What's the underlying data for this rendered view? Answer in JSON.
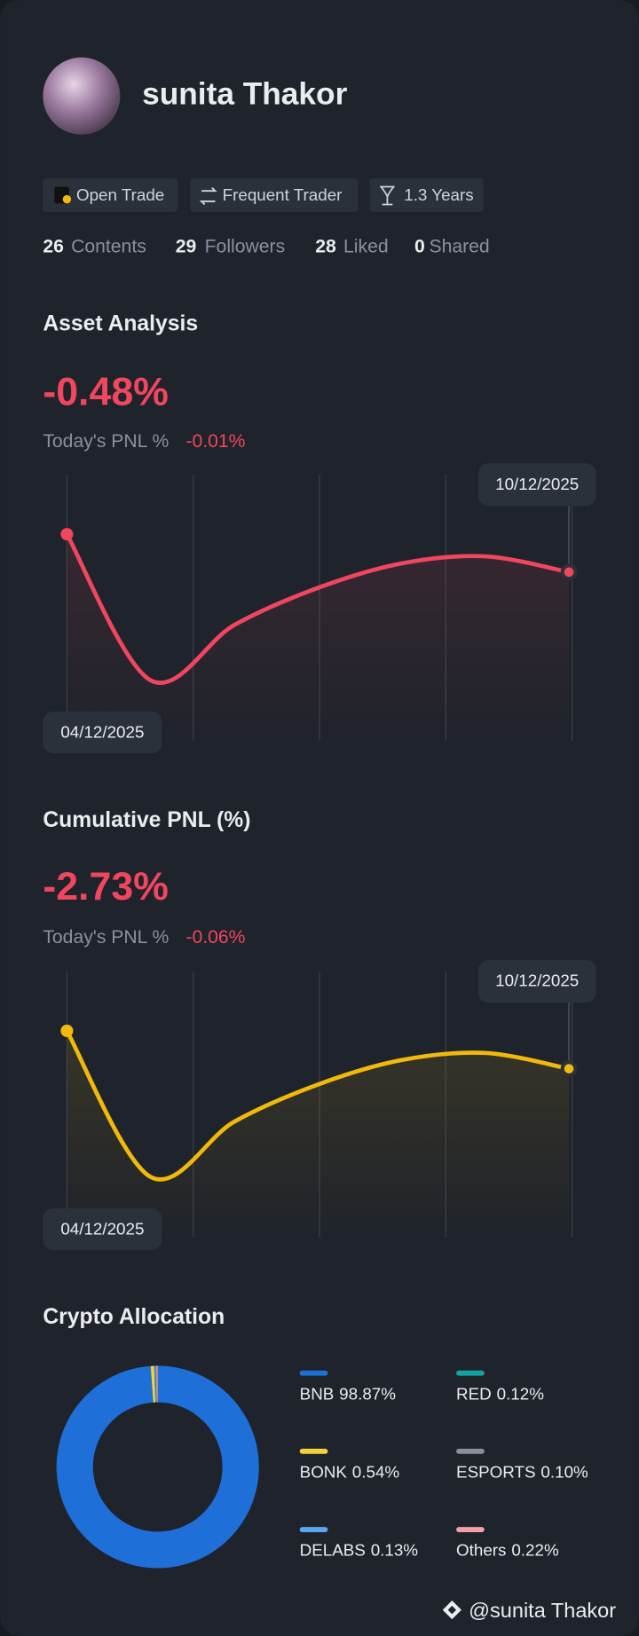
{
  "profile": {
    "name": "sunita Thakor",
    "badges": [
      "Open Trade",
      "Frequent Trader",
      "1.3 Years"
    ],
    "stats": [
      {
        "count": 26,
        "label": "Contents"
      },
      {
        "count": 29,
        "label": "Followers"
      },
      {
        "count": 28,
        "label": "Liked"
      },
      {
        "count": 0,
        "label": "Shared"
      }
    ]
  },
  "asset_analysis": {
    "title": "Asset Analysis",
    "value": "-0.48%",
    "today_label": "Today's PNL %",
    "today_value": "-0.01%",
    "chart": {
      "type": "line",
      "x": [
        "04/12/2025",
        null,
        null,
        null,
        null,
        null,
        "10/12/2025"
      ],
      "values": [
        0,
        -1.85,
        -1.15,
        -0.68,
        -0.37,
        -0.28,
        -0.48
      ],
      "color": "#f0465e"
    }
  },
  "cumulative_pnl": {
    "title": "Cumulative PNL (%)",
    "value": "-2.73%",
    "today_label": "Today's PNL %",
    "today_value": "-0.06%",
    "chart": {
      "type": "line",
      "x": [
        "04/12/2025",
        null,
        null,
        null,
        null,
        null,
        "10/12/2025"
      ],
      "values": [
        -2.25,
        -4.1,
        -3.4,
        -2.93,
        -2.62,
        -2.53,
        -2.73
      ],
      "color": "#f0b90b"
    }
  },
  "crypto_allocation": {
    "title": "Crypto Allocation",
    "chart": {
      "type": "pie",
      "categories": [
        "BNB",
        "BONK",
        "DELABS",
        "RED",
        "ESPORTS",
        "Others"
      ],
      "values": [
        98.87,
        0.54,
        0.13,
        0.12,
        0.1,
        0.22
      ],
      "value_labels": [
        "98.87%",
        "0.54%",
        "0.13%",
        "0.12%",
        "0.10%",
        "0.22%"
      ],
      "colors": [
        "#1f6fd9",
        "#f3d13c",
        "#5aa6f2",
        "#12a4a4",
        "#8a8f98",
        "#f2a0a5"
      ]
    }
  },
  "watermark": "@sunita Thakor"
}
